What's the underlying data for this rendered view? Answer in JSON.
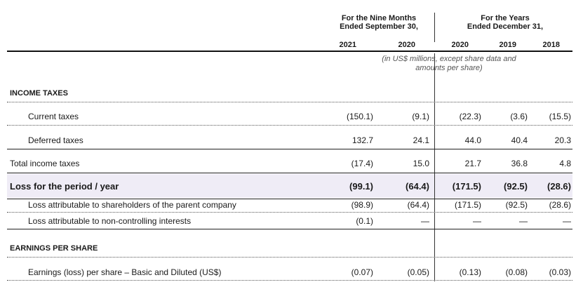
{
  "header": {
    "nine_months_line1": "For the Nine Months",
    "nine_months_line2": "Ended September 30,",
    "years_line1": "For the Years",
    "years_line2": "Ended December 31,",
    "columns": [
      "2021",
      "2020",
      "2020",
      "2019",
      "2018"
    ],
    "units_line1": "(in US$ millions, except share data and",
    "units_line2": "amounts per share)"
  },
  "rows": [
    {
      "label": "INCOME TAXES",
      "values": [
        "",
        "",
        "",
        "",
        ""
      ]
    },
    {
      "label": "Current taxes",
      "values": [
        "(150.1)",
        "(9.1)",
        "(22.3)",
        "(3.6)",
        "(15.5)"
      ]
    },
    {
      "label": "Deferred taxes",
      "values": [
        "132.7",
        "24.1",
        "44.0",
        "40.4",
        "20.3"
      ]
    },
    {
      "label": "Total income taxes",
      "values": [
        "(17.4)",
        "15.0",
        "21.7",
        "36.8",
        "4.8"
      ]
    },
    {
      "label": "Loss for the period / year",
      "values": [
        "(99.1)",
        "(64.4)",
        "(171.5)",
        "(92.5)",
        "(28.6)"
      ]
    },
    {
      "label": "Loss attributable to shareholders of the parent company",
      "values": [
        "(98.9)",
        "(64.4)",
        "(171.5)",
        "(92.5)",
        "(28.6)"
      ]
    },
    {
      "label": "Loss attributable to non-controlling interests",
      "values": [
        "(0.1)",
        "—",
        "—",
        "—",
        "—"
      ]
    },
    {
      "label": "EARNINGS PER SHARE",
      "values": [
        "",
        "",
        "",
        "",
        ""
      ]
    },
    {
      "label": "Earnings (loss) per share – Basic and Diluted (US$)",
      "values": [
        "(0.07)",
        "(0.05)",
        "(0.13)",
        "(0.08)",
        "(0.03)"
      ]
    }
  ]
}
